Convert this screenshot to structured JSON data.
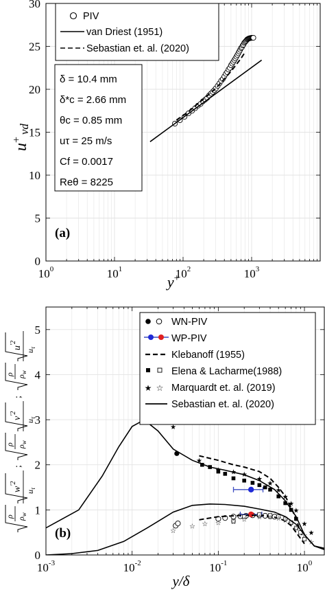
{
  "chart_data": [
    {
      "type": "line",
      "panel_label": "(a)",
      "xlabel": "y+",
      "ylabel": "u+ vd",
      "xscale": "log",
      "xlim": [
        1,
        10000
      ],
      "ylim": [
        0,
        30
      ],
      "xticks": [
        "10^0",
        "10^1",
        "10^2",
        "10^3"
      ],
      "yticks": [
        "0",
        "5",
        "10",
        "15",
        "20",
        "25",
        "30"
      ],
      "grid": true,
      "legend_position": "top-left",
      "series": [
        {
          "name": "PIV",
          "style": "open-circle",
          "x": [
            76,
            90,
            105,
            120,
            135,
            150,
            165,
            180,
            195,
            210,
            225,
            240,
            255,
            270,
            285,
            300,
            320,
            340,
            360,
            380,
            400,
            420,
            440,
            460,
            480,
            500,
            520,
            540,
            560,
            580,
            600,
            620,
            640,
            660,
            680,
            700,
            720,
            740,
            760,
            780,
            800,
            820,
            840,
            860,
            880,
            900,
            920,
            940,
            960,
            980,
            1000,
            1020,
            1040,
            1060
          ],
          "y": [
            16.0,
            16.4,
            16.8,
            17.2,
            17.5,
            17.8,
            18.1,
            18.3,
            18.6,
            18.8,
            19.0,
            19.3,
            19.5,
            19.7,
            19.9,
            20.1,
            20.4,
            20.7,
            21.0,
            21.2,
            21.5,
            21.8,
            22.0,
            22.3,
            22.5,
            22.8,
            23.0,
            23.2,
            23.4,
            23.6,
            23.8,
            24.0,
            24.2,
            24.4,
            24.6,
            24.8,
            24.9,
            25.1,
            25.2,
            25.4,
            25.5,
            25.6,
            25.7,
            25.8,
            25.85,
            25.9,
            25.93,
            25.95,
            25.97,
            25.98,
            26.0,
            26.0,
            26.0,
            26.0
          ]
        },
        {
          "name": "van Driest (1951)",
          "style": "solid",
          "x": [
            33,
            1400
          ],
          "y": [
            13.9,
            23.4
          ]
        },
        {
          "name": "Sebastian et. al. (2020)",
          "style": "dashed",
          "x": [
            80,
            120,
            200,
            300,
            400,
            500,
            600,
            700,
            800
          ],
          "y": [
            16.4,
            17.4,
            18.9,
            20.1,
            21.2,
            22.1,
            22.9,
            23.6,
            24.3
          ]
        }
      ],
      "annotations": {
        "delta": "δ = 10.4 mm",
        "delta_star": "δ*c = 2.66 mm",
        "theta": "θc = 0.85 mm",
        "u_tau": "uτ = 25 m/s",
        "cf": "Cf = 0.0017",
        "re": "Reθ = 8225"
      }
    },
    {
      "type": "line",
      "panel_label": "(b)",
      "xlabel": "y/δ",
      "ylabel": "√(ρ/ρw)√(w'²)/uτ ; √(ρ/ρw)√(v'²)/uτ ; √(ρ/ρw)√(u'²)/uτ",
      "xscale": "log",
      "xlim": [
        0.001,
        1.7
      ],
      "ylim": [
        0,
        5.5
      ],
      "xticks": [
        "10^-3",
        "10^-2",
        "10^-1",
        "10^0"
      ],
      "yticks": [
        "0",
        "1",
        "2",
        "3",
        "4",
        "5"
      ],
      "grid": true,
      "legend_position": "top-right",
      "legend": [
        "WN-PIV",
        "WP-PIV",
        "Klebanoff (1955)",
        "Elena & Lacharme(1988)",
        "Marquardt et. al. (2019)",
        "Sebastian et. al. (2020)"
      ],
      "series": [
        {
          "name": "WN-PIV",
          "style": "filled-circle",
          "x": [
            0.033
          ],
          "y": [
            2.25
          ]
        },
        {
          "name": "WN-PIV",
          "style": "open-circle",
          "x": [
            0.032,
            0.034,
            0.1,
            0.12,
            0.15,
            0.18,
            0.21,
            0.25,
            0.3,
            0.35,
            0.4,
            0.45
          ],
          "y": [
            0.65,
            0.7,
            0.8,
            0.82,
            0.85,
            0.86,
            0.87,
            0.88,
            0.88,
            0.87,
            0.86,
            0.85
          ]
        },
        {
          "name": "WP-PIV",
          "style": "blue-circle-errorbar",
          "x": [
            0.24
          ],
          "y": [
            1.45
          ],
          "xerr_low": [
            0.15
          ],
          "xerr_high": [
            0.33
          ]
        },
        {
          "name": "WP-PIV",
          "style": "red-circle-errorbar",
          "x": [
            0.24
          ],
          "y": [
            0.9
          ],
          "xerr_low": [
            0.18
          ],
          "xerr_high": [
            0.32
          ]
        },
        {
          "name": "Klebanoff (1955)",
          "style": "dashed",
          "x": [
            0.06,
            0.1,
            0.15,
            0.2,
            0.3,
            0.4,
            0.5,
            0.6,
            0.7,
            0.8,
            0.9,
            1.0
          ],
          "y": [
            2.2,
            2.1,
            2.0,
            1.95,
            1.85,
            1.7,
            1.5,
            1.3,
            1.05,
            0.8,
            0.5,
            0.3
          ]
        },
        {
          "name": "Klebanoff (1955)",
          "style": "dashed",
          "x": [
            0.06,
            0.1,
            0.2,
            0.3,
            0.4,
            0.5,
            0.6,
            0.7,
            0.8,
            1.0
          ],
          "y": [
            0.78,
            0.85,
            0.88,
            0.88,
            0.86,
            0.82,
            0.75,
            0.65,
            0.5,
            0.25
          ]
        },
        {
          "name": "Elena & Lacharme(1988)",
          "style": "filled-square",
          "x": [
            0.065,
            0.08,
            0.1,
            0.12,
            0.15,
            0.2,
            0.25,
            0.3,
            0.35,
            0.4,
            0.5,
            0.6,
            0.7,
            0.8
          ],
          "y": [
            2.0,
            1.95,
            1.85,
            1.8,
            1.7,
            1.65,
            1.6,
            1.55,
            1.5,
            1.45,
            1.3,
            1.15,
            1.0,
            0.8
          ]
        },
        {
          "name": "Elena & Lacharme(1988)",
          "style": "open-square",
          "x": [
            0.15,
            0.2,
            0.3,
            0.4,
            0.5,
            0.6,
            0.7,
            0.8,
            0.9,
            1.0
          ],
          "y": [
            0.75,
            0.85,
            0.9,
            0.88,
            0.85,
            0.8,
            0.72,
            0.6,
            0.5,
            0.35
          ]
        },
        {
          "name": "Marquardt et. al. (2019)",
          "style": "filled-star",
          "x": [
            0.03,
            0.06,
            0.1,
            0.15,
            0.2,
            0.3,
            0.4,
            0.5,
            0.6,
            0.7,
            0.8,
            1.0,
            1.2
          ],
          "y": [
            2.85,
            2.1,
            1.9,
            1.85,
            1.8,
            1.7,
            1.6,
            1.45,
            1.3,
            1.15,
            1.0,
            0.7,
            0.5
          ]
        },
        {
          "name": "Marquardt et. al. (2019)",
          "style": "open-star",
          "x": [
            0.03,
            0.05,
            0.07,
            0.1,
            0.15,
            0.2,
            0.3,
            0.4,
            0.5,
            0.6,
            0.7,
            0.8,
            1.0,
            1.2
          ],
          "y": [
            0.55,
            0.65,
            0.7,
            0.72,
            0.75,
            0.8,
            0.85,
            0.85,
            0.82,
            0.78,
            0.72,
            0.6,
            0.45,
            0.3
          ]
        },
        {
          "name": "Sebastian et. al. (2020)",
          "style": "solid",
          "x": [
            0.001,
            0.0024,
            0.0045,
            0.007,
            0.01,
            0.013,
            0.016,
            0.02,
            0.03,
            0.05,
            0.08,
            0.12,
            0.2,
            0.3,
            0.45,
            0.6,
            0.8,
            1.0,
            1.3,
            1.7
          ],
          "y": [
            0.6,
            1.0,
            1.75,
            2.4,
            2.85,
            2.97,
            2.9,
            2.75,
            2.35,
            2.1,
            1.95,
            1.88,
            1.78,
            1.65,
            1.45,
            1.2,
            0.85,
            0.45,
            0.2,
            0.15
          ]
        },
        {
          "name": "Sebastian et. al. (2020)",
          "style": "solid",
          "x": [
            0.001,
            0.002,
            0.004,
            0.008,
            0.015,
            0.03,
            0.05,
            0.08,
            0.12,
            0.2,
            0.3,
            0.45,
            0.6,
            0.8,
            1.0,
            1.3,
            1.7
          ],
          "y": [
            0.0,
            0.03,
            0.1,
            0.3,
            0.6,
            0.95,
            1.1,
            1.13,
            1.12,
            1.08,
            1.02,
            0.95,
            0.85,
            0.68,
            0.45,
            0.2,
            0.12
          ]
        }
      ]
    }
  ]
}
